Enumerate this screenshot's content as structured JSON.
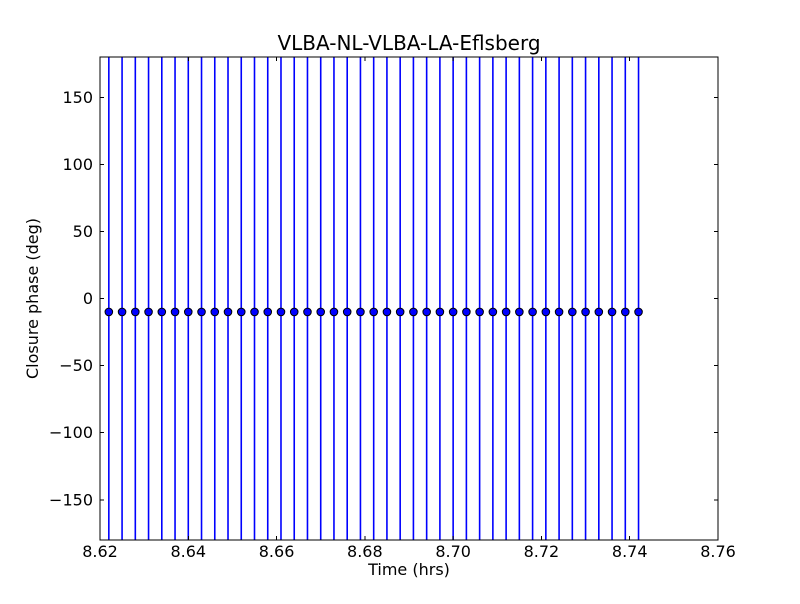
{
  "figure": {
    "background_color": "#ffffff",
    "frame_color": "#000000",
    "text_color": "#000000"
  },
  "chart_data": {
    "type": "scatter",
    "title": "VLBA-NL-VLBA-LA-Eflsberg",
    "xlabel": "Time (hrs)",
    "ylabel": "Closure phase (deg)",
    "xlim": [
      8.62,
      8.76
    ],
    "ylim": [
      -180,
      180
    ],
    "x_ticks": [
      8.62,
      8.64,
      8.66,
      8.68,
      8.7,
      8.72,
      8.74,
      8.76
    ],
    "x_tick_labels": [
      "8.62",
      "8.64",
      "8.66",
      "8.68",
      "8.70",
      "8.72",
      "8.74",
      "8.76"
    ],
    "y_ticks": [
      150,
      100,
      50,
      0,
      -50,
      -100,
      -150
    ],
    "y_tick_labels": [
      "150",
      "100",
      "50",
      "0",
      "−50",
      "−100",
      "−150"
    ],
    "grid": false,
    "legend": "none",
    "marker_style": "circle",
    "marker_color": "#0000ff",
    "marker_edge_color": "#000000",
    "errorbar_color": "#0000ff",
    "errorbar_note": "error bars span beyond the full y-axis range and are clipped at ±180",
    "series": [
      {
        "name": "closure phase",
        "x": [
          8.622,
          8.625,
          8.628,
          8.631,
          8.634,
          8.637,
          8.64,
          8.643,
          8.646,
          8.649,
          8.652,
          8.655,
          8.658,
          8.661,
          8.664,
          8.667,
          8.67,
          8.673,
          8.676,
          8.679,
          8.682,
          8.685,
          8.688,
          8.691,
          8.694,
          8.697,
          8.7,
          8.703,
          8.706,
          8.709,
          8.712,
          8.715,
          8.718,
          8.721,
          8.724,
          8.727,
          8.73,
          8.733,
          8.736,
          8.739,
          8.742
        ],
        "y": [
          -10,
          -10,
          -10,
          -10,
          -10,
          -10,
          -10,
          -10,
          -10,
          -10,
          -10,
          -10,
          -10,
          -10,
          -10,
          -10,
          -10,
          -10,
          -10,
          -10,
          -10,
          -10,
          -10,
          -10,
          -10,
          -10,
          -10,
          -10,
          -10,
          -10,
          -10,
          -10,
          -10,
          -10,
          -10,
          -10,
          -10,
          -10,
          -10,
          -10,
          -10
        ],
        "yerr": 200
      }
    ]
  }
}
